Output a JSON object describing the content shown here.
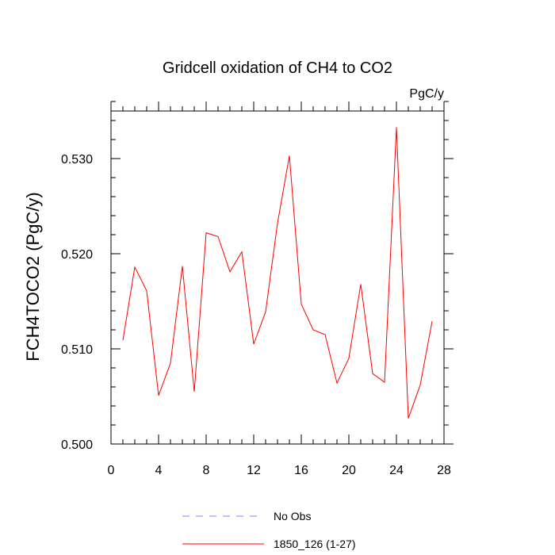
{
  "chart_data": {
    "type": "line",
    "title": "Gridcell oxidation of CH4 to CO2",
    "units_label": "PgC/y",
    "ylabel": "FCH4TOCO2  (PgC/y)",
    "xlabel": "",
    "xlim": [
      0,
      28
    ],
    "ylim": [
      0.5,
      0.535
    ],
    "x_ticks": [
      0,
      4,
      8,
      12,
      16,
      20,
      24,
      28
    ],
    "x_tick_labels": [
      "0",
      "4",
      "8",
      "12",
      "16",
      "20",
      "24",
      "28"
    ],
    "y_ticks": [
      0.5,
      0.51,
      0.52,
      0.53
    ],
    "y_tick_labels": [
      "0.500",
      "0.510",
      "0.520",
      "0.530"
    ],
    "x_minor_step": 1,
    "y_minor_step": 0.002,
    "series": [
      {
        "name": "1850_126 (1-27)",
        "color": "#ff0000",
        "dash": "solid",
        "x": [
          1,
          2,
          3,
          4,
          5,
          6,
          7,
          8,
          9,
          10,
          11,
          12,
          13,
          14,
          15,
          16,
          17,
          18,
          19,
          20,
          21,
          22,
          23,
          24,
          25,
          26,
          27
        ],
        "values": [
          0.5109,
          0.5186,
          0.5161,
          0.5051,
          0.5085,
          0.5187,
          0.5055,
          0.5222,
          0.5218,
          0.5181,
          0.5202,
          0.5105,
          0.5139,
          0.5232,
          0.5303,
          0.5147,
          0.512,
          0.5115,
          0.5064,
          0.509,
          0.5168,
          0.5074,
          0.5065,
          0.5333,
          0.5027,
          0.5062,
          0.5129
        ]
      },
      {
        "name": "No Obs",
        "color": "#8080ff",
        "dash": "dashed",
        "x": [],
        "values": []
      }
    ],
    "legend": [
      {
        "label": "No Obs",
        "color": "#8080ff",
        "dash": "dashed"
      },
      {
        "label": "1850_126 (1-27)",
        "color": "#ff0000",
        "dash": "solid"
      }
    ],
    "legend_position": "bottom-center",
    "grid": false
  }
}
